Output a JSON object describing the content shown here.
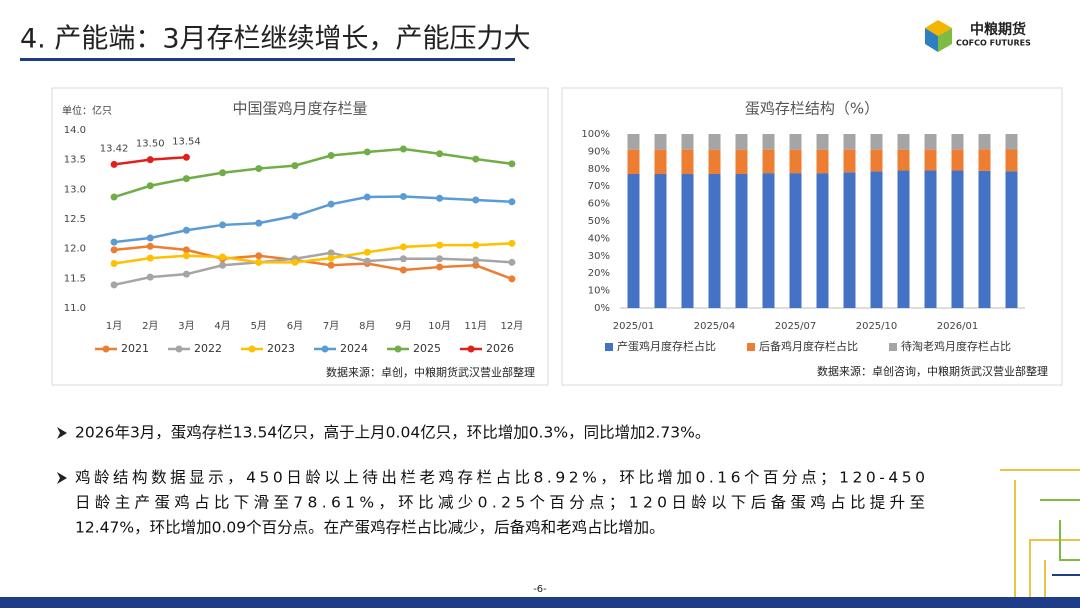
{
  "header": {
    "title": "4. 产能端：3月存栏继续增长，产能压力大",
    "logo_name": "中粮期货",
    "logo_en": "COFCO FUTURES"
  },
  "chart_data": [
    {
      "type": "line",
      "title": "中国蛋鸡月度存栏量",
      "unit": "单位：亿只",
      "categories": [
        "1月",
        "2月",
        "3月",
        "4月",
        "5月",
        "6月",
        "7月",
        "8月",
        "9月",
        "10月",
        "11月",
        "12月"
      ],
      "series": [
        {
          "name": "2021",
          "color": "#ed7d31",
          "values": [
            11.98,
            12.04,
            11.98,
            11.83,
            11.88,
            11.81,
            11.72,
            11.75,
            11.64,
            11.69,
            11.72,
            11.49
          ]
        },
        {
          "name": "2022",
          "color": "#a5a5a5",
          "values": [
            11.39,
            11.52,
            11.57,
            11.72,
            11.77,
            11.83,
            11.93,
            11.79,
            11.83,
            11.83,
            11.81,
            11.77
          ]
        },
        {
          "name": "2023",
          "color": "#ffc000",
          "values": [
            11.75,
            11.84,
            11.88,
            11.86,
            11.77,
            11.77,
            11.84,
            11.94,
            12.03,
            12.06,
            12.06,
            12.09
          ]
        },
        {
          "name": "2024",
          "color": "#5b9bd5",
          "values": [
            12.11,
            12.18,
            12.31,
            12.4,
            12.43,
            12.55,
            12.75,
            12.87,
            12.88,
            12.85,
            12.82,
            12.79
          ]
        },
        {
          "name": "2025",
          "color": "#70ad47",
          "values": [
            12.87,
            13.06,
            13.18,
            13.28,
            13.35,
            13.4,
            13.57,
            13.63,
            13.68,
            13.6,
            13.51,
            13.43
          ]
        },
        {
          "name": "2026",
          "color": "#e0201b",
          "values": [
            13.42,
            13.5,
            13.54,
            null,
            null,
            null,
            null,
            null,
            null,
            null,
            null,
            null
          ],
          "value_labels": [
            "13.42",
            "13.50",
            "13.54",
            null,
            null,
            null,
            null,
            null,
            null,
            null,
            null,
            null
          ]
        }
      ],
      "ylim": [
        11,
        14
      ],
      "yticks": [
        {
          "value": 11,
          "label": "11.0"
        },
        11.5,
        {
          "value": 12,
          "label": "12.0"
        },
        12.5,
        {
          "value": 13,
          "label": "13.0"
        },
        13.5,
        {
          "value": 14,
          "label": "14.0"
        }
      ],
      "grid": false,
      "legend": "bottom",
      "source": "数据来源：卓创，中粮期货武汉营业部整理"
    },
    {
      "type": "bar",
      "stacked": true,
      "title": "蛋鸡存栏结构（%）",
      "categories": [
        "2025/01",
        null,
        null,
        "2025/04",
        null,
        null,
        "2025/07",
        null,
        null,
        "2025/10",
        null,
        null,
        "2026/01",
        null,
        null
      ],
      "series": [
        {
          "name": "产蛋鸡月度存栏占比",
          "color": "#4472c4",
          "values": [
            77,
            77,
            77,
            77,
            77,
            77.5,
            77.5,
            77.5,
            78,
            78.5,
            79,
            79,
            79,
            78.86,
            78.61
          ]
        },
        {
          "name": "后备鸡月度存栏占比",
          "color": "#ed7d31",
          "values": [
            14,
            14,
            14,
            14,
            14,
            13.5,
            13.5,
            13.5,
            13,
            12.5,
            12,
            12,
            12,
            12.38,
            12.47
          ]
        },
        {
          "name": "待淘老鸡月度存栏占比",
          "color": "#a5a5a5",
          "values": [
            9,
            9,
            9,
            9,
            9,
            9,
            9,
            9,
            9,
            9,
            9,
            9,
            9,
            8.76,
            8.92
          ]
        }
      ],
      "ylim": [
        0,
        100
      ],
      "yticks": [
        {
          "value": 0,
          "label": "0%"
        },
        {
          "value": 10,
          "label": "10%"
        },
        {
          "value": 20,
          "label": "20%"
        },
        {
          "value": 30,
          "label": "30%"
        },
        {
          "value": 40,
          "label": "40%"
        },
        {
          "value": 50,
          "label": "50%"
        },
        {
          "value": 60,
          "label": "60%"
        },
        {
          "value": 70,
          "label": "70%"
        },
        {
          "value": 80,
          "label": "80%"
        },
        {
          "value": 90,
          "label": "90%"
        },
        {
          "value": 100,
          "label": "100%"
        }
      ],
      "grid": false,
      "legend": "bottom",
      "source": "数据来源：卓创咨询，中粮期货武汉营业部整理"
    }
  ],
  "bullets": [
    [
      "2026年3月，蛋鸡存栏13.54亿只，高于上月0.04亿只，环比增加0.3%，同比增加2.73%。"
    ],
    [
      "鸡龄结构数据显示，450日龄以上待出栏老鸡存栏占比8.92%，环比增加0.16个百分点；120-450",
      "日龄主产蛋鸡占比下滑至78.61%，环比减少0.25个百分点；120日龄以下后备蛋鸡占比提升至",
      "12.47%，环比增加0.09个百分点。在产蛋鸡存栏占比减少，后备鸡和老鸡占比增加。"
    ]
  ],
  "page_number": "-6-"
}
